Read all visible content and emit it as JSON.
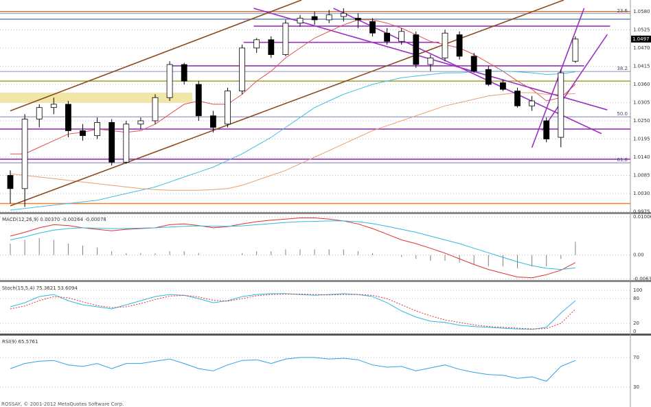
{
  "chart_data": [
    {
      "type": "candlestick",
      "open": [
        1.0085,
        1.0045,
        1.0255,
        1.029,
        1.03,
        1.022,
        1.0205,
        1.0245,
        1.0125,
        1.024,
        1.025,
        1.032,
        1.042,
        1.036,
        1.0265,
        1.024,
        1.034,
        1.047,
        1.0495,
        1.045,
        1.0545,
        1.0565,
        1.0555,
        1.0565,
        1.056,
        1.055,
        1.0515,
        1.049,
        1.051,
        1.042,
        1.044,
        1.051,
        1.0445,
        1.0405,
        1.0365,
        1.034,
        1.0295,
        1.025,
        1.02,
        1.043
      ],
      "high": [
        1.01,
        1.027,
        1.03,
        1.032,
        1.031,
        1.024,
        1.026,
        1.0255,
        1.025,
        1.026,
        1.033,
        1.043,
        1.0425,
        1.037,
        1.028,
        1.035,
        1.048,
        1.05,
        1.0505,
        1.0555,
        1.057,
        1.058,
        1.0585,
        1.059,
        1.0575,
        1.056,
        1.053,
        1.053,
        1.052,
        1.045,
        1.0525,
        1.052,
        1.0455,
        1.0415,
        1.0375,
        1.035,
        1.0325,
        1.026,
        1.0405,
        1.0505
      ],
      "low": [
        1.0,
        0.999,
        1.023,
        1.027,
        1.02,
        1.019,
        1.0195,
        1.0115,
        1.012,
        1.0225,
        1.024,
        1.031,
        1.036,
        1.025,
        1.0215,
        1.023,
        1.033,
        1.0455,
        1.044,
        1.0445,
        1.0535,
        1.054,
        1.0545,
        1.055,
        1.053,
        1.0505,
        1.048,
        1.048,
        1.041,
        1.04,
        1.043,
        1.0435,
        1.0395,
        1.0355,
        1.034,
        1.029,
        1.028,
        1.0185,
        1.017,
        1.0425
      ],
      "close": [
        1.0045,
        1.0255,
        1.029,
        1.03,
        1.022,
        1.0205,
        1.0245,
        1.0125,
        1.024,
        1.025,
        1.032,
        1.042,
        1.037,
        1.0265,
        1.023,
        1.034,
        1.047,
        1.0495,
        1.045,
        1.0545,
        1.056,
        1.0555,
        1.057,
        1.0575,
        1.0555,
        1.0515,
        1.049,
        1.052,
        1.042,
        1.044,
        1.0515,
        1.0445,
        1.04,
        1.036,
        1.0345,
        1.0295,
        1.031,
        1.0195,
        1.0395,
        1.0497
      ],
      "series": [
        {
          "color": "#e05050",
          "values": [
            1.015,
            1.015,
            1.017,
            1.019,
            1.021,
            1.0215,
            1.0225,
            1.022,
            1.0215,
            1.022,
            1.024,
            1.027,
            1.03,
            1.031,
            1.03,
            1.03,
            1.033,
            1.037,
            1.04,
            1.044,
            1.047,
            1.05,
            1.052,
            1.054,
            1.0555,
            1.0555,
            1.0545,
            1.053,
            1.051,
            1.049,
            1.048,
            1.047,
            1.045,
            1.0425,
            1.04,
            1.037,
            1.0345,
            1.031,
            1.032,
            1.036
          ]
        },
        {
          "color": "#40c0e0",
          "values": [
            0.998,
            0.9985,
            0.999,
            0.9995,
            1.0,
            1.0005,
            1.001,
            1.002,
            1.003,
            1.004,
            1.005,
            1.0065,
            1.008,
            1.0095,
            1.011,
            1.013,
            1.015,
            1.0175,
            1.02,
            1.023,
            1.026,
            1.029,
            1.031,
            1.033,
            1.0345,
            1.036,
            1.037,
            1.038,
            1.0385,
            1.039,
            1.0395,
            1.0395,
            1.0398,
            1.04,
            1.04,
            1.0398,
            1.0395,
            1.039,
            1.0392,
            1.0398
          ]
        },
        {
          "color": "#e8a070",
          "values": [
            1.009,
            1.0085,
            1.008,
            1.0075,
            1.007,
            1.0065,
            1.006,
            1.0055,
            1.005,
            1.0045,
            1.0042,
            1.004,
            1.004,
            1.004,
            1.0042,
            1.0045,
            1.0055,
            1.007,
            1.0085,
            1.01,
            1.012,
            1.014,
            1.016,
            1.018,
            1.02,
            1.022,
            1.0235,
            1.025,
            1.0265,
            1.028,
            1.0295,
            1.0305,
            1.0315,
            1.0325,
            1.033,
            1.0335,
            1.0335,
            1.033,
            1.033,
            1.0332
          ]
        }
      ],
      "zone": [
        1.0304,
        1.0335
      ],
      "levels": [
        {
          "price": 1.058,
          "color": "#c87840"
        },
        {
          "price": 1.0557,
          "color": "#7090b0"
        },
        {
          "price": 1.0536,
          "color": "#9a30c0",
          "x": [
            16.8,
            41.4
          ]
        },
        {
          "price": 1.0487,
          "color": "#9a30c0",
          "x": [
            16.1,
            29.6
          ]
        },
        {
          "price": 1.0416,
          "color": "#9a30c0",
          "x": [
            11.1,
            39.6
          ]
        },
        {
          "price": 1.037,
          "color": "#a0a030"
        },
        {
          "price": 1.0225,
          "color": "#9a30c0"
        },
        {
          "price": 1.0134,
          "color": "#9a30c0"
        },
        {
          "price": 1.0,
          "color": "#f08030"
        }
      ],
      "fib": [
        {
          "label": "23.6",
          "price": 1.0574
        },
        {
          "label": "38.2",
          "price": 1.0399
        },
        {
          "label": "50.0",
          "price": 1.0262
        },
        {
          "label": "61.8",
          "price": 1.0123
        }
      ],
      "lines": [
        {
          "color": "#8a4a20",
          "x": [
            0,
            20.1
          ],
          "y": [
            1.028,
            1.0615
          ]
        },
        {
          "color": "#8a4a20",
          "x": [
            0,
            38.2
          ],
          "y": [
            0.9993,
            1.0615
          ]
        },
        {
          "color": "#9a30c0",
          "x": [
            16.8,
            41.2
          ],
          "y": [
            1.059,
            1.0283
          ]
        },
        {
          "color": "#9a30c0",
          "x": [
            22.3,
            40.8
          ],
          "y": [
            1.059,
            1.0211
          ]
        },
        {
          "color": "#9a30c0",
          "x": [
            36.0,
            39.6
          ],
          "y": [
            1.0169,
            1.059
          ]
        },
        {
          "color": "#9a30c0",
          "x": [
            36.7,
            41.2
          ],
          "y": [
            1.0221,
            1.0511
          ]
        }
      ],
      "last_price": 1.0497,
      "ylim": [
        0.9972,
        1.0615
      ],
      "yticks": [
        {
          "value": 1.058,
          "label": "1.0580"
        },
        {
          "value": 1.0525,
          "label": "1.0525"
        },
        {
          "value": 1.047,
          "label": "1.0470"
        },
        {
          "value": 1.0415,
          "label": "1.0415"
        },
        {
          "value": 1.036,
          "label": "1.0360"
        },
        {
          "value": 1.0305,
          "label": "1.0305"
        },
        {
          "value": 1.025,
          "label": "1.0250"
        },
        {
          "value": 1.0195,
          "label": "1.0195"
        },
        {
          "value": 1.014,
          "label": "1.0140"
        },
        {
          "value": 1.0085,
          "label": "1.0085"
        },
        {
          "value": 1.003,
          "label": "1.0030"
        },
        {
          "value": 0.9975,
          "label": "0.9975"
        }
      ],
      "grid": true
    },
    {
      "type": "macd",
      "label": "MACD(12,26,9) 0.00370 -0.00264 -0.00078",
      "series": [
        {
          "style": "histogram",
          "color": "#808080",
          "values": [
            0.003,
            0.004,
            0.0045,
            0.004,
            0.003,
            0.0025,
            0.002,
            0.001,
            0.0005,
            0.0005,
            0.0005,
            0.001,
            0.001,
            0.0005,
            0.0,
            0.0,
            0.0005,
            0.001,
            0.001,
            0.0015,
            0.0015,
            0.0015,
            0.0015,
            0.0015,
            0.001,
            0.0005,
            0.0,
            -0.0005,
            -0.001,
            -0.0015,
            -0.0015,
            -0.002,
            -0.0025,
            -0.003,
            -0.003,
            -0.0035,
            -0.003,
            -0.003,
            -0.001,
            0.0035
          ]
        },
        {
          "style": "line",
          "color": "#e03030",
          "values": [
            0.005,
            0.006,
            0.0072,
            0.008,
            0.0078,
            0.0072,
            0.0068,
            0.0064,
            0.0068,
            0.007,
            0.0072,
            0.008,
            0.0082,
            0.0078,
            0.0072,
            0.0075,
            0.0082,
            0.0088,
            0.0092,
            0.0095,
            0.0098,
            0.0098,
            0.0095,
            0.009,
            0.0082,
            0.007,
            0.0055,
            0.004,
            0.003,
            0.0018,
            0.0005,
            -0.001,
            -0.0025,
            -0.0038,
            -0.0048,
            -0.0058,
            -0.006,
            -0.0052,
            -0.004,
            -0.002
          ]
        },
        {
          "style": "line",
          "color": "#30b8e0",
          "values": [
            0.004,
            0.0048,
            0.0058,
            0.0066,
            0.007,
            0.0072,
            0.0071,
            0.007,
            0.007,
            0.0071,
            0.0072,
            0.0074,
            0.0076,
            0.0077,
            0.0076,
            0.0076,
            0.0077,
            0.008,
            0.0083,
            0.0086,
            0.0088,
            0.0089,
            0.009,
            0.009,
            0.0088,
            0.0083,
            0.0076,
            0.0068,
            0.006,
            0.005,
            0.004,
            0.003,
            0.0018,
            0.0006,
            -0.0006,
            -0.0018,
            -0.0028,
            -0.0035,
            -0.0038,
            -0.0034
          ]
        }
      ],
      "ylim": [
        -0.0066,
        0.0108
      ],
      "yticks": [
        0.01006,
        {
          "value": 0,
          "label": "0.00"
        },
        -0.0063
      ]
    },
    {
      "type": "line",
      "label": "Stoch(15,5,4) 75.3621 53.6094",
      "series": [
        {
          "style": "line",
          "color": "#30b8e0",
          "values": [
            60,
            70,
            85,
            90,
            75,
            65,
            60,
            55,
            65,
            75,
            85,
            90,
            88,
            80,
            70,
            75,
            85,
            90,
            92,
            92,
            90,
            88,
            90,
            92,
            90,
            85,
            70,
            50,
            35,
            25,
            22,
            15,
            12,
            10,
            8,
            6,
            5,
            10,
            45,
            75
          ]
        },
        {
          "style": "dotted",
          "color": "#e03030",
          "values": [
            55,
            62,
            75,
            85,
            82,
            72,
            63,
            58,
            60,
            68,
            78,
            86,
            88,
            84,
            76,
            74,
            80,
            87,
            90,
            91,
            91,
            90,
            89,
            90,
            90,
            88,
            80,
            65,
            50,
            38,
            28,
            22,
            16,
            12,
            10,
            8,
            6,
            7,
            20,
            54
          ]
        }
      ],
      "ylim": [
        -8.5,
        118.6
      ],
      "yticks": [
        100,
        80,
        20,
        0
      ]
    },
    {
      "type": "line",
      "label": "RSI(9) 65.5761",
      "series": [
        {
          "style": "line",
          "color": "#30a0e0",
          "values": [
            55,
            62,
            65,
            66,
            60,
            58,
            62,
            55,
            62,
            62,
            65,
            68,
            62,
            55,
            52,
            60,
            66,
            67,
            62,
            68,
            70,
            70,
            68,
            69,
            67,
            60,
            57,
            58,
            52,
            56,
            60,
            54,
            50,
            47,
            46,
            42,
            44,
            38,
            58,
            66
          ]
        }
      ],
      "ylim": [
        3.3,
        98.6
      ],
      "yticks": [
        70,
        30
      ],
      "footer": "ROSSAY, © 2001-2012 MetaQuotes Software Corp."
    }
  ]
}
